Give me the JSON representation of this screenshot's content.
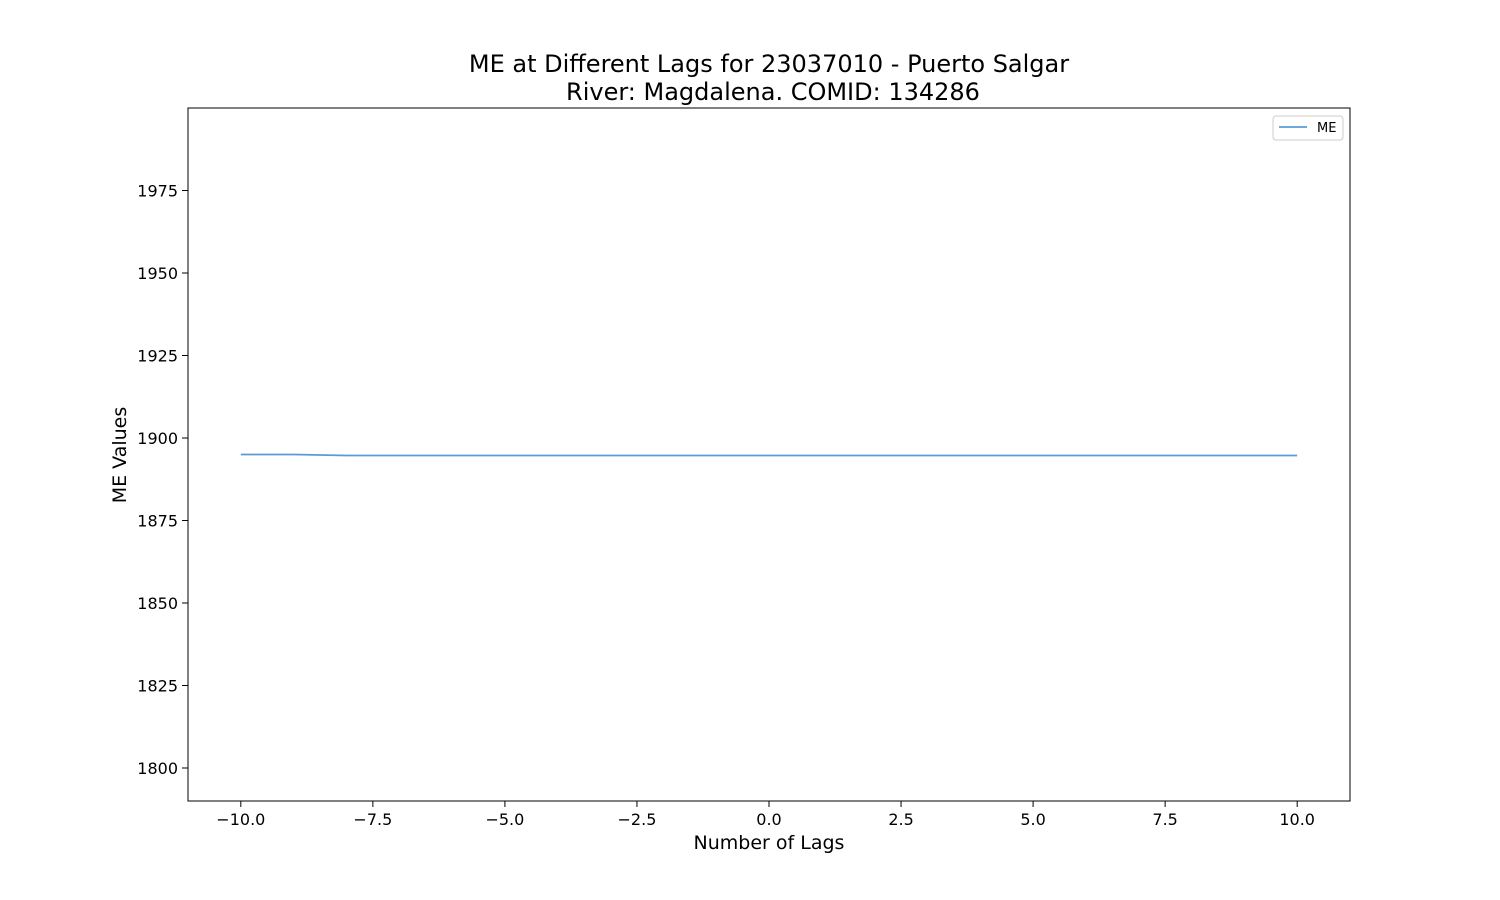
{
  "chart_data": {
    "type": "line",
    "title_line1": "ME at Different Lags for 23037010 - Puerto Salgar",
    "title_line2": "River: Magdalena. COMID: 134286",
    "xlabel": "Number of Lags",
    "ylabel": "ME Values",
    "xlim": [
      -11,
      11
    ],
    "ylim": [
      1790,
      2000
    ],
    "x_ticks": [
      -10.0,
      -7.5,
      -5.0,
      -2.5,
      0.0,
      2.5,
      5.0,
      7.5,
      10.0
    ],
    "x_tick_labels": [
      "−10.0",
      "−7.5",
      "−5.0",
      "−2.5",
      "0.0",
      "2.5",
      "5.0",
      "7.5",
      "10.0"
    ],
    "y_ticks": [
      1800,
      1825,
      1850,
      1875,
      1900,
      1925,
      1950,
      1975
    ],
    "y_tick_labels": [
      "1800",
      "1825",
      "1850",
      "1875",
      "1900",
      "1925",
      "1950",
      "1975"
    ],
    "grid": false,
    "legend_position": "top-right",
    "series": [
      {
        "name": "ME",
        "color": "#5b9bd5",
        "x": [
          -10,
          -9,
          -8,
          -7,
          -6,
          -5,
          -4,
          -3,
          -2,
          -1,
          0,
          1,
          2,
          3,
          4,
          5,
          6,
          7,
          8,
          9,
          10
        ],
        "y": [
          1895.0,
          1895.0,
          1894.7,
          1894.7,
          1894.7,
          1894.7,
          1894.7,
          1894.7,
          1894.7,
          1894.7,
          1894.7,
          1894.7,
          1894.7,
          1894.7,
          1894.7,
          1894.7,
          1894.7,
          1894.7,
          1894.7,
          1894.7,
          1894.7
        ]
      }
    ]
  }
}
